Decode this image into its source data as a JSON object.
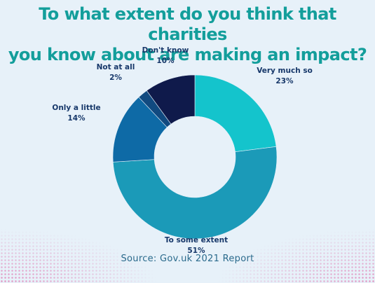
{
  "title_lines": [
    "To what extent do you think that charities",
    "you know about are making an impact?"
  ],
  "source": "Source: Gov.uk 2021 Report",
  "chart_data": {
    "type": "pie",
    "subtype": "donut",
    "title": "To what extent do you think that charities you know about are making an impact?",
    "slices": [
      {
        "label": "Very much so",
        "value": 23,
        "value_label": "23%",
        "color": "#14c4cc"
      },
      {
        "label": "To some extent",
        "value": 51,
        "value_label": "51%",
        "color": "#1b9ab8"
      },
      {
        "label": "Only a little",
        "value": 14,
        "value_label": "14%",
        "color": "#0e6aa6"
      },
      {
        "label": "Not at all",
        "value": 2,
        "value_label": "2%",
        "color": "#114a80"
      },
      {
        "label": "Don't know",
        "value": 10,
        "value_label": "10%",
        "color": "#0f1a4b"
      }
    ],
    "legend": "none"
  }
}
